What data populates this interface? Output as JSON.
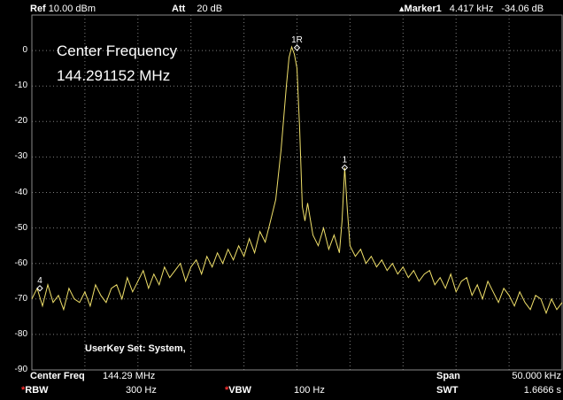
{
  "header": {
    "ref_label": "Ref",
    "ref_value": "10.00 dBm",
    "att_label": "Att",
    "att_value": "20 dB",
    "marker_label": "Marker1",
    "marker_freq": "4.417 kHz",
    "marker_level": "-34.06 dB"
  },
  "overlay": {
    "center_title": "Center Frequency",
    "center_value": "144.291152 MHz",
    "userkey": "UserKey Set:   System,"
  },
  "footer": {
    "center_label": "Center Freq",
    "center_value": "144.29 MHz",
    "span_label": "Span",
    "span_value": "50.000 kHz",
    "rbw_label": "RBW",
    "rbw_value": "300 Hz",
    "vbw_label": "VBW",
    "vbw_value": "100 Hz",
    "swt_label": "SWT",
    "swt_value": "1.6666 s"
  },
  "colors": {
    "trace": "#f0e06a",
    "grid": "#7f7f7f",
    "star": "#ff3030"
  },
  "chart_data": {
    "type": "line",
    "y_ticks": [
      "0",
      "-10",
      "-20",
      "-30",
      "-40",
      "-50",
      "-60",
      "-70",
      "-80",
      "-90"
    ],
    "ylim": [
      -90,
      10
    ],
    "xlim": [
      0,
      10
    ],
    "grid": true,
    "markers": [
      {
        "label": "1R",
        "x": 5.0,
        "y": 0.8
      },
      {
        "label": "1",
        "x": 5.9,
        "y": -33
      },
      {
        "label": "4",
        "x": 0.15,
        "y": -67
      }
    ],
    "series": [
      {
        "x": [
          0.0,
          0.1,
          0.2,
          0.3,
          0.4,
          0.5,
          0.6,
          0.7,
          0.8,
          0.9,
          1.0,
          1.1,
          1.2,
          1.3,
          1.4,
          1.5,
          1.6,
          1.7,
          1.8,
          1.9,
          2.0,
          2.1,
          2.2,
          2.3,
          2.4,
          2.5,
          2.6,
          2.7,
          2.8,
          2.9,
          3.0,
          3.1,
          3.2,
          3.3,
          3.4,
          3.5,
          3.6,
          3.7,
          3.8,
          3.9,
          4.0,
          4.1,
          4.2,
          4.3,
          4.4,
          4.5,
          4.6,
          4.7,
          4.8,
          4.85,
          4.9,
          4.95,
          5.0,
          5.05,
          5.1,
          5.15,
          5.2,
          5.3,
          5.4,
          5.5,
          5.6,
          5.7,
          5.8,
          5.85,
          5.9,
          5.95,
          6.0,
          6.1,
          6.2,
          6.3,
          6.4,
          6.5,
          6.6,
          6.7,
          6.8,
          6.9,
          7.0,
          7.1,
          7.2,
          7.3,
          7.4,
          7.5,
          7.6,
          7.7,
          7.8,
          7.9,
          8.0,
          8.1,
          8.2,
          8.3,
          8.4,
          8.5,
          8.6,
          8.7,
          8.8,
          8.9,
          9.0,
          9.1,
          9.2,
          9.3,
          9.4,
          9.5,
          9.6,
          9.7,
          9.8,
          9.9,
          10.0
        ],
        "y": [
          -70,
          -67,
          -72,
          -66,
          -71,
          -69,
          -73,
          -67,
          -70,
          -71,
          -68,
          -72,
          -66,
          -69,
          -71,
          -67,
          -66,
          -70,
          -64,
          -68,
          -65,
          -62,
          -67,
          -63,
          -66,
          -61,
          -64,
          -62,
          -60,
          -65,
          -61,
          -59,
          -63,
          -58,
          -61,
          -57,
          -60,
          -56,
          -59,
          -55,
          -58,
          -53,
          -57,
          -51,
          -54,
          -48,
          -42,
          -28,
          -10,
          -2,
          1,
          -1,
          -5,
          -22,
          -44,
          -48,
          -43,
          -52,
          -55,
          -50,
          -56,
          -52,
          -57,
          -48,
          -33,
          -45,
          -55,
          -58,
          -56,
          -60,
          -58,
          -61,
          -59,
          -62,
          -60,
          -63,
          -61,
          -64,
          -62,
          -65,
          -63,
          -62,
          -66,
          -64,
          -67,
          -63,
          -68,
          -65,
          -64,
          -69,
          -66,
          -70,
          -65,
          -68,
          -71,
          -67,
          -69,
          -72,
          -68,
          -71,
          -73,
          -69,
          -70,
          -74,
          -70,
          -73,
          -71
        ]
      }
    ]
  }
}
